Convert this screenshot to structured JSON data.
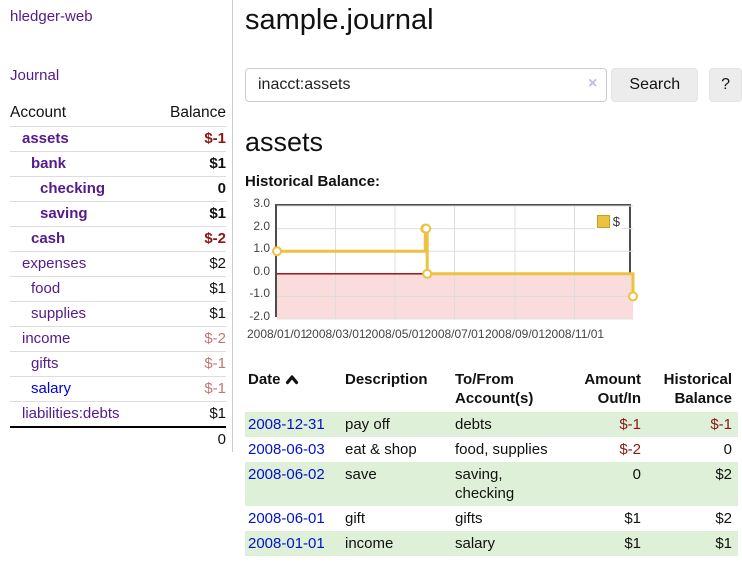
{
  "app": {
    "brand": "hledger-web",
    "nav": {
      "journal": "Journal"
    }
  },
  "sidebar": {
    "header": {
      "account": "Account",
      "balance": "Balance"
    },
    "accounts": [
      {
        "name": "assets",
        "depth": 1,
        "balance": "$-1"
      },
      {
        "name": "bank",
        "depth": 2,
        "balance": "$1"
      },
      {
        "name": "checking",
        "depth": 3,
        "balance": "0"
      },
      {
        "name": "saving",
        "depth": 3,
        "balance": "$1"
      },
      {
        "name": "cash",
        "depth": 2,
        "balance": "$-2"
      },
      {
        "name": "expenses",
        "depth": 1,
        "balance": "$2"
      },
      {
        "name": "food",
        "depth": 2,
        "balance": "$1"
      },
      {
        "name": "supplies",
        "depth": 2,
        "balance": "$1"
      },
      {
        "name": "income",
        "depth": 1,
        "balance": "$-2"
      },
      {
        "name": "gifts",
        "depth": 2,
        "balance": "$-1"
      },
      {
        "name": "salary",
        "depth": 2,
        "balance": "$-1"
      },
      {
        "name": "liabilities:debts",
        "depth": 1,
        "balance": "$1"
      }
    ],
    "total": "0"
  },
  "header": {
    "title": "sample.journal"
  },
  "search": {
    "value": "inacct:assets",
    "button_label": "Search",
    "help_label": "?"
  },
  "icons": {
    "clear": "×",
    "sort_ascending": "chevron-up"
  },
  "account_page": {
    "title": "assets",
    "chart_label": "Historical Balance:"
  },
  "chart_data": {
    "type": "line",
    "title": "Historical Balance",
    "step": true,
    "series": [
      {
        "name": "$",
        "x": [
          "2008-01-01",
          "2008-06-01",
          "2008-06-02",
          "2008-06-03",
          "2008-12-31"
        ],
        "values": [
          1,
          2,
          2,
          0,
          -1
        ]
      }
    ],
    "xlim": [
      "2008/01/01",
      "2008/12/31"
    ],
    "ylim": [
      -2,
      3
    ],
    "xticks": [
      "2008/01/01",
      "2008/03/01",
      "2008/05/01",
      "2008/07/01",
      "2008/09/01",
      "2008/11/01"
    ],
    "yticks": [
      "3.0",
      "2.0",
      "1.0",
      "0.0",
      "-1.0",
      "-2.0"
    ],
    "grid": true,
    "legend_position": "top-right",
    "line_color": "#edc240",
    "negative_fill": "#fbdcdc",
    "zero_line_color": "#990000"
  },
  "register": {
    "columns": {
      "date": "Date",
      "description": "Description",
      "accounts": "To/From Account(s)",
      "amount": "Amount Out/In",
      "balance": "Historical Balance"
    },
    "rows": [
      {
        "date": "2008-12-31",
        "description": "pay off",
        "accounts": "debts",
        "amount": "$-1",
        "balance": "$-1"
      },
      {
        "date": "2008-06-03",
        "description": "eat & shop",
        "accounts": "food, supplies",
        "amount": "$-2",
        "balance": "0"
      },
      {
        "date": "2008-06-02",
        "description": "save",
        "accounts": "saving, checking",
        "amount": "0",
        "balance": "$2"
      },
      {
        "date": "2008-06-01",
        "description": "gift",
        "accounts": "gifts",
        "amount": "$1",
        "balance": "$2"
      },
      {
        "date": "2008-01-01",
        "description": "income",
        "accounts": "salary",
        "amount": "$1",
        "balance": "$1"
      }
    ]
  },
  "colors": {
    "link_purple": "#551a8b",
    "link_blue": "#0011cc",
    "negative_strong": "#8c1616",
    "negative_soft": "#c17878",
    "chart_line_gold": "#edc240",
    "chart_negative_pink": "#fbdcdc",
    "zero_line_red": "#990000",
    "row_highlight_green": "#dff0d8"
  }
}
